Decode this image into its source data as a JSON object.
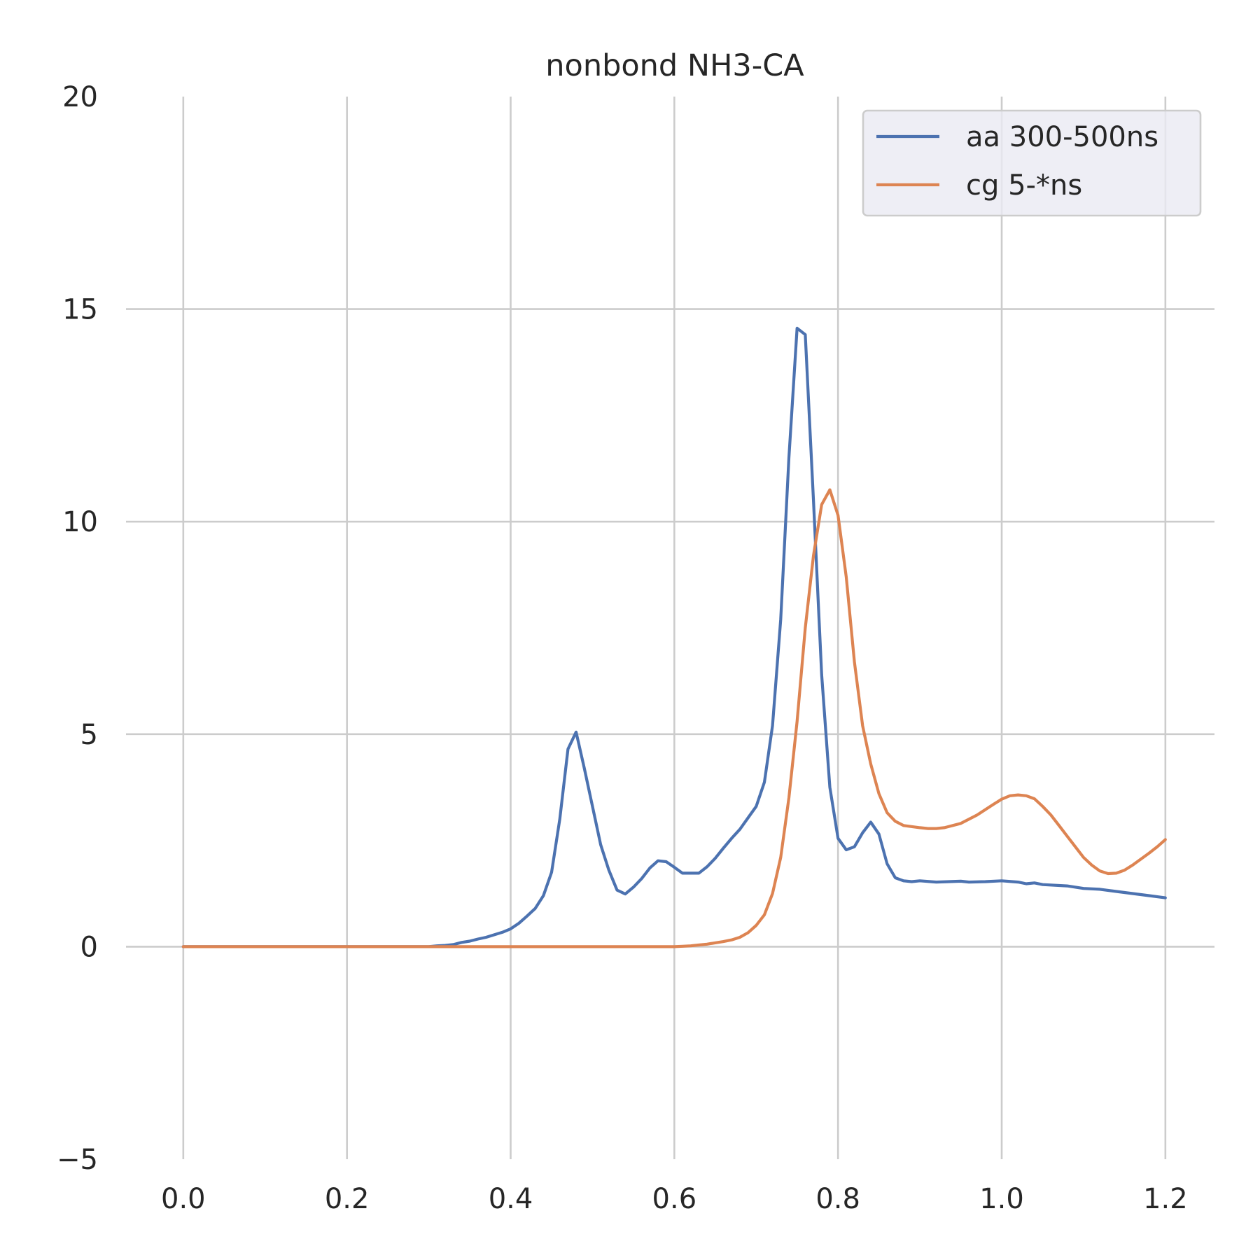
{
  "chart_data": {
    "type": "line",
    "title": "nonbond NH3-CA",
    "xlabel": "",
    "ylabel": "",
    "xlim": [
      -0.07,
      1.26
    ],
    "ylim": [
      -5,
      20
    ],
    "xticks": [
      0.0,
      0.2,
      0.4,
      0.6,
      0.8,
      1.0,
      1.2
    ],
    "xtick_labels": [
      "0.0",
      "0.2",
      "0.4",
      "0.6",
      "0.8",
      "1.0",
      "1.2"
    ],
    "yticks": [
      -5,
      0,
      5,
      10,
      15,
      20
    ],
    "ytick_labels": [
      "−5",
      "0",
      "5",
      "10",
      "15",
      "20"
    ],
    "grid": true,
    "legend_position": "top-right",
    "series": [
      {
        "name": "aa 300-500ns",
        "color": "#4c72b0",
        "x": [
          0.0,
          0.3,
          0.31,
          0.32,
          0.33,
          0.34,
          0.35,
          0.36,
          0.37,
          0.38,
          0.39,
          0.4,
          0.41,
          0.42,
          0.43,
          0.44,
          0.45,
          0.46,
          0.47,
          0.48,
          0.49,
          0.5,
          0.51,
          0.52,
          0.53,
          0.54,
          0.55,
          0.56,
          0.57,
          0.58,
          0.59,
          0.6,
          0.61,
          0.62,
          0.63,
          0.64,
          0.65,
          0.66,
          0.67,
          0.68,
          0.69,
          0.7,
          0.71,
          0.72,
          0.73,
          0.74,
          0.75,
          0.76,
          0.77,
          0.78,
          0.79,
          0.8,
          0.81,
          0.82,
          0.83,
          0.84,
          0.85,
          0.86,
          0.87,
          0.88,
          0.89,
          0.9,
          0.92,
          0.95,
          0.96,
          0.98,
          1.0,
          1.02,
          1.03,
          1.04,
          1.05,
          1.08,
          1.1,
          1.12,
          1.14,
          1.16,
          1.18,
          1.2
        ],
        "values": [
          0.0,
          0.0,
          0.02,
          0.03,
          0.05,
          0.1,
          0.13,
          0.18,
          0.22,
          0.28,
          0.34,
          0.42,
          0.55,
          0.72,
          0.9,
          1.2,
          1.75,
          3.0,
          4.65,
          5.05,
          4.2,
          3.3,
          2.4,
          1.8,
          1.33,
          1.24,
          1.4,
          1.6,
          1.85,
          2.02,
          2.0,
          1.87,
          1.73,
          1.73,
          1.73,
          1.88,
          2.08,
          2.32,
          2.55,
          2.76,
          3.03,
          3.3,
          3.87,
          5.2,
          7.7,
          11.5,
          14.55,
          14.4,
          10.5,
          6.4,
          3.75,
          2.55,
          2.28,
          2.35,
          2.68,
          2.93,
          2.65,
          1.95,
          1.62,
          1.55,
          1.53,
          1.55,
          1.52,
          1.54,
          1.52,
          1.53,
          1.55,
          1.52,
          1.48,
          1.5,
          1.46,
          1.43,
          1.37,
          1.35,
          1.3,
          1.25,
          1.2,
          1.15
        ]
      },
      {
        "name": "cg 5-*ns",
        "color": "#dd8452",
        "x": [
          0.0,
          0.6,
          0.61,
          0.62,
          0.63,
          0.64,
          0.65,
          0.66,
          0.67,
          0.68,
          0.69,
          0.7,
          0.71,
          0.72,
          0.73,
          0.74,
          0.75,
          0.76,
          0.77,
          0.78,
          0.79,
          0.8,
          0.81,
          0.82,
          0.83,
          0.84,
          0.85,
          0.86,
          0.87,
          0.88,
          0.9,
          0.91,
          0.92,
          0.93,
          0.95,
          0.97,
          0.99,
          1.0,
          1.01,
          1.02,
          1.03,
          1.04,
          1.05,
          1.06,
          1.07,
          1.08,
          1.09,
          1.1,
          1.11,
          1.12,
          1.13,
          1.14,
          1.15,
          1.16,
          1.17,
          1.18,
          1.19,
          1.2
        ],
        "values": [
          0.0,
          0.0,
          0.01,
          0.02,
          0.04,
          0.06,
          0.09,
          0.12,
          0.16,
          0.22,
          0.33,
          0.5,
          0.75,
          1.25,
          2.1,
          3.5,
          5.3,
          7.5,
          9.2,
          10.4,
          10.75,
          10.15,
          8.7,
          6.7,
          5.2,
          4.3,
          3.6,
          3.15,
          2.95,
          2.85,
          2.8,
          2.78,
          2.78,
          2.8,
          2.9,
          3.1,
          3.35,
          3.47,
          3.55,
          3.57,
          3.55,
          3.48,
          3.3,
          3.1,
          2.85,
          2.6,
          2.35,
          2.1,
          1.92,
          1.78,
          1.72,
          1.73,
          1.8,
          1.92,
          2.06,
          2.2,
          2.35,
          2.52
        ]
      }
    ]
  }
}
